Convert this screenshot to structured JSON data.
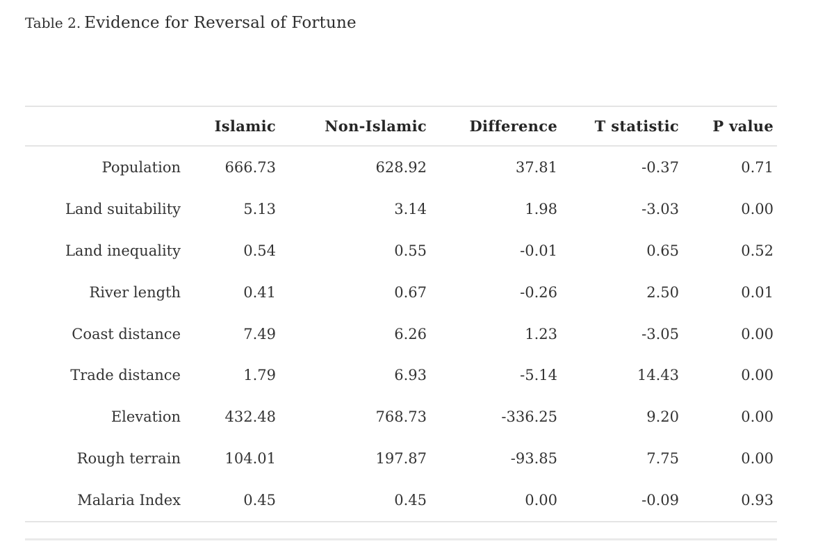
{
  "title": {
    "prefix": "Table 2.",
    "text": "Evidence for Reversal of Fortune"
  },
  "table": {
    "columns": [
      "Islamic",
      "Non-Islamic",
      "Difference",
      "T statistic",
      "P value"
    ],
    "rows": [
      {
        "label": "Population",
        "values": [
          "666.73",
          "628.92",
          "37.81",
          "-0.37",
          "0.71"
        ]
      },
      {
        "label": "Land suitability",
        "values": [
          "5.13",
          "3.14",
          "1.98",
          "-3.03",
          "0.00"
        ]
      },
      {
        "label": "Land inequality",
        "values": [
          "0.54",
          "0.55",
          "-0.01",
          "0.65",
          "0.52"
        ]
      },
      {
        "label": "River length",
        "values": [
          "0.41",
          "0.67",
          "-0.26",
          "2.50",
          "0.01"
        ]
      },
      {
        "label": "Coast distance",
        "values": [
          "7.49",
          "6.26",
          "1.23",
          "-3.05",
          "0.00"
        ]
      },
      {
        "label": "Trade distance",
        "values": [
          "1.79",
          "6.93",
          "-5.14",
          "14.43",
          "0.00"
        ]
      },
      {
        "label": "Elevation",
        "values": [
          "432.48",
          "768.73",
          "-336.25",
          "9.20",
          "0.00"
        ]
      },
      {
        "label": "Rough terrain",
        "values": [
          "104.01",
          "197.87",
          "-93.85",
          "7.75",
          "0.00"
        ]
      },
      {
        "label": "Malaria Index",
        "values": [
          "0.45",
          "0.45",
          "0.00",
          "-0.09",
          "0.93"
        ]
      }
    ]
  }
}
